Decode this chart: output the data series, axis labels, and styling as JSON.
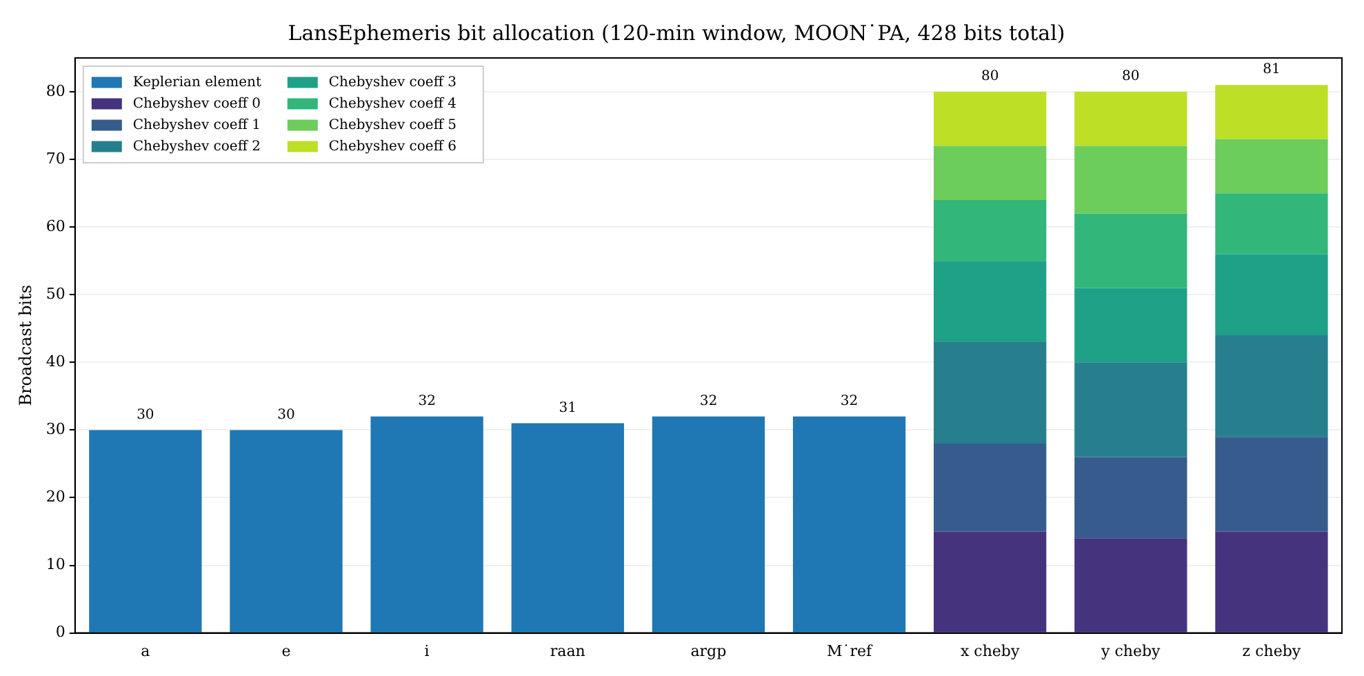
{
  "chart_data": {
    "type": "bar",
    "title": "LansEphemeris bit allocation (120-min window, MOON˙PA, 428 bits total)",
    "ylabel": "Broadcast bits",
    "categories": [
      "a",
      "e",
      "i",
      "raan",
      "argp",
      "M˙ref",
      "x cheby",
      "y cheby",
      "z cheby"
    ],
    "stacked": true,
    "series": [
      {
        "name": "Keplerian element",
        "color": "#1f77b4",
        "values": [
          30,
          30,
          32,
          31,
          32,
          32,
          null,
          null,
          null
        ]
      },
      {
        "name": "Chebyshev coeff 0",
        "color": "#46337e",
        "values": [
          null,
          null,
          null,
          null,
          null,
          null,
          15,
          14,
          15
        ]
      },
      {
        "name": "Chebyshev coeff 1",
        "color": "#365c8d",
        "values": [
          null,
          null,
          null,
          null,
          null,
          null,
          13,
          12,
          14
        ]
      },
      {
        "name": "Chebyshev coeff 2",
        "color": "#277f8e",
        "values": [
          null,
          null,
          null,
          null,
          null,
          null,
          15,
          14,
          15
        ]
      },
      {
        "name": "Chebyshev coeff 3",
        "color": "#1fa187",
        "values": [
          null,
          null,
          null,
          null,
          null,
          null,
          12,
          11,
          12
        ]
      },
      {
        "name": "Chebyshev coeff 4",
        "color": "#32b67a",
        "values": [
          null,
          null,
          null,
          null,
          null,
          null,
          9,
          11,
          9
        ]
      },
      {
        "name": "Chebyshev coeff 5",
        "color": "#6ccd5a",
        "values": [
          null,
          null,
          null,
          null,
          null,
          null,
          8,
          10,
          8
        ]
      },
      {
        "name": "Chebyshev coeff 6",
        "color": "#bddf26",
        "values": [
          null,
          null,
          null,
          null,
          null,
          null,
          8,
          8,
          8
        ]
      }
    ],
    "totals": [
      "30",
      "30",
      "32",
      "31",
      "32",
      "32",
      "80",
      "80",
      "81"
    ],
    "ylim": [
      0,
      85
    ],
    "yticks": [
      0,
      10,
      20,
      30,
      40,
      50,
      60,
      70,
      80
    ],
    "grid": "y",
    "legend": "top left"
  }
}
